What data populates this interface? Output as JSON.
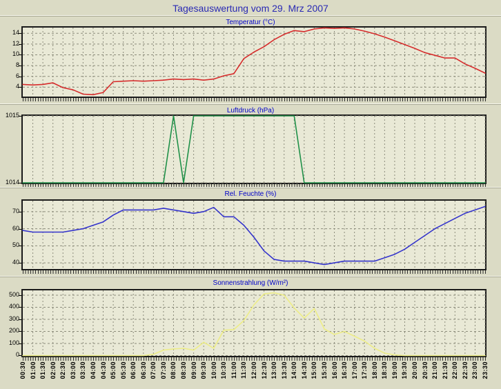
{
  "page": {
    "title": "Tagesauswertung vom 29. Mrz 2007",
    "background_color": "#DBDBC5",
    "plot_background_color": "#E9E9D6",
    "grid_color": "#8B8B7A",
    "title_color": "#2A2AB4",
    "section_title_color": "#0000C8",
    "axis_label_color": "#000000"
  },
  "x_axis": {
    "labels": [
      "00:30",
      "01:00",
      "01:30",
      "02:00",
      "02:30",
      "03:00",
      "03:30",
      "04:00",
      "04:30",
      "05:00",
      "05:30",
      "06:00",
      "06:30",
      "07:00",
      "07:30",
      "08:00",
      "08:30",
      "09:00",
      "09:30",
      "10:00",
      "10:30",
      "11:00",
      "11:30",
      "12:00",
      "12:30",
      "13:00",
      "13:30",
      "14:00",
      "14:30",
      "15:00",
      "15:30",
      "16:00",
      "16:30",
      "17:00",
      "17:30",
      "18:00",
      "18:30",
      "19:00",
      "19:30",
      "20:00",
      "20:30",
      "21:00",
      "21:30",
      "22:00",
      "22:30",
      "23:00",
      "23:30"
    ]
  },
  "chart_data": [
    {
      "type": "line",
      "title": "Temperatur (°C)",
      "color": "#D62B2B",
      "ylim": [
        2.25,
        15.05
      ],
      "yticks": [
        4,
        6,
        8,
        10,
        12,
        14
      ],
      "grid": true,
      "values": [
        4.5,
        4.4,
        4.5,
        4.8,
        3.9,
        3.5,
        2.7,
        2.6,
        3.0,
        5.0,
        5.1,
        5.2,
        5.1,
        5.2,
        5.3,
        5.5,
        5.4,
        5.5,
        5.3,
        5.5,
        6.1,
        6.5,
        9.3,
        10.5,
        11.5,
        12.8,
        13.8,
        14.5,
        14.3,
        14.8,
        15.0,
        14.9,
        15.0,
        14.8,
        14.4,
        13.9,
        13.3,
        12.6,
        11.9,
        11.2,
        10.4,
        9.9,
        9.4,
        9.4,
        8.3,
        7.5,
        6.6
      ]
    },
    {
      "type": "line",
      "title": "Luftdruck (hPa)",
      "color": "#1F9048",
      "ylim": [
        1014,
        1015
      ],
      "yticks": [
        1014,
        1015
      ],
      "grid": true,
      "values": [
        1014,
        1014,
        1014,
        1014,
        1014,
        1014,
        1014,
        1014,
        1014,
        1014,
        1014,
        1014,
        1014,
        1014,
        1014,
        1015,
        1014,
        1015,
        1015,
        1015,
        1015,
        1015,
        1015,
        1015,
        1015,
        1015,
        1015,
        1015,
        1014,
        1014,
        1014,
        1014,
        1014,
        1014,
        1014,
        1014,
        1014,
        1014,
        1014,
        1014,
        1014,
        1014,
        1014,
        1014,
        1014,
        1014,
        1014
      ]
    },
    {
      "type": "line",
      "title": "Rel. Feuchte (%)",
      "color": "#3333CC",
      "ylim": [
        36.4,
        76.4
      ],
      "yticks": [
        40,
        50,
        60,
        70
      ],
      "grid": true,
      "values": [
        59,
        58,
        58,
        58,
        58,
        59,
        60,
        62,
        64,
        68,
        71,
        71,
        71,
        71,
        72,
        71,
        70,
        69,
        70,
        72.5,
        67,
        67,
        62,
        55,
        47,
        42,
        41,
        41,
        41,
        40,
        39,
        40,
        41,
        41,
        41,
        41,
        43,
        45,
        48,
        52,
        56,
        60,
        63,
        66,
        69,
        71,
        73
      ]
    },
    {
      "type": "line",
      "title": "Sonnenstrahlung (W/m²)",
      "color": "#EDED86",
      "ylim": [
        -3,
        540
      ],
      "yticks": [
        0,
        100,
        200,
        300,
        400,
        500
      ],
      "grid": true,
      "values": [
        0,
        0,
        0,
        0,
        0,
        0,
        0,
        0,
        0,
        0,
        0,
        0,
        0,
        10,
        45,
        55,
        60,
        45,
        110,
        60,
        210,
        215,
        290,
        420,
        510,
        520,
        500,
        395,
        310,
        390,
        220,
        175,
        200,
        160,
        120,
        60,
        20,
        5,
        0,
        0,
        0,
        0,
        0,
        0,
        0,
        0,
        0
      ]
    }
  ]
}
